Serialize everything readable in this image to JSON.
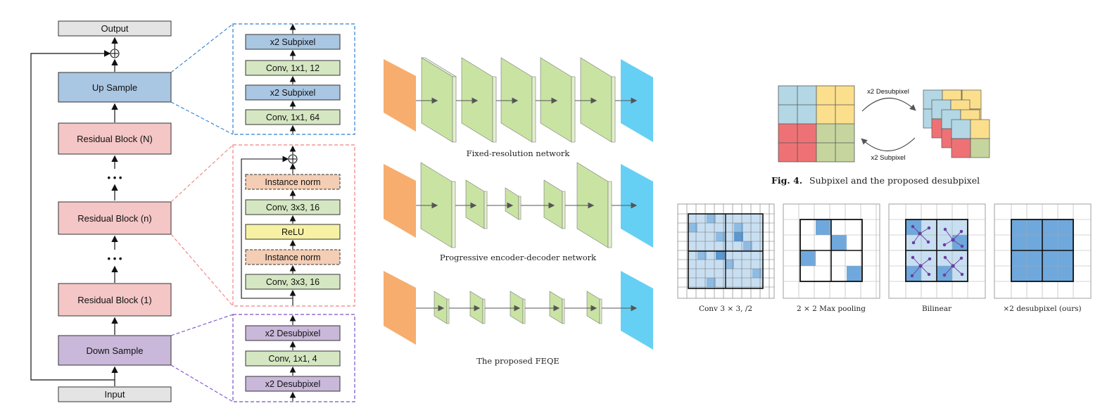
{
  "architecture": {
    "output_label": "Output",
    "input_label": "Input",
    "up_sample_label": "Up Sample",
    "down_sample_label": "Down Sample",
    "residual_n_label": "Residual Block (N)",
    "residual_mid_label": "Residual Block (n)",
    "residual_1_label": "Residual Block (1)",
    "ellipsis": "• • •"
  },
  "upsample_detail": [
    "x2 Subpixel",
    "Conv, 1x1, 12",
    "x2 Subpixel",
    "Conv, 1x1, 64"
  ],
  "residual_detail": [
    "Instance norm",
    "Conv, 3x3, 16",
    "ReLU",
    "Instance norm",
    "Conv, 3x3, 16"
  ],
  "downsample_detail": [
    "x2 Desubpixel",
    "Conv, 1x1, 4",
    "x2 Desubpixel"
  ],
  "networks": {
    "fixed_caption": "Fixed-resolution network",
    "progressive_caption": "Progressive encoder-decoder network",
    "feqe_caption": "The proposed FEQE"
  },
  "fig4": {
    "desubpixel_label": "x2 Desubpixel",
    "subpixel_label": "x2 Subpixel",
    "caption_bold": "Fig. 4.",
    "caption_text": "Subpixel and the proposed desubpixel"
  },
  "comparison": {
    "conv_caption": "Conv 3 × 3, /2",
    "maxpool_caption": "2 × 2 Max pooling",
    "bilinear_caption": "Bilinear",
    "desubpixel_caption": "×2 desubpixel (ours)"
  },
  "colors": {
    "gray": "#e4e4e4",
    "blue": "#a9c6e2",
    "pink": "#f4c6c6",
    "purple": "#c9b8da",
    "green": "#d5e7c2",
    "peach": "#f3cdb4",
    "yellow": "#f7f1a3",
    "orange": "#f6ad6e",
    "cyan": "#66d0f4",
    "layer_green": "#c9e3a3",
    "quad_blue": "#b3d7e4",
    "quad_yellow": "#fbdf8c",
    "quad_red": "#ee7275",
    "quad_olive": "#c6d59d",
    "grid_blue": "#6fa8dc"
  }
}
